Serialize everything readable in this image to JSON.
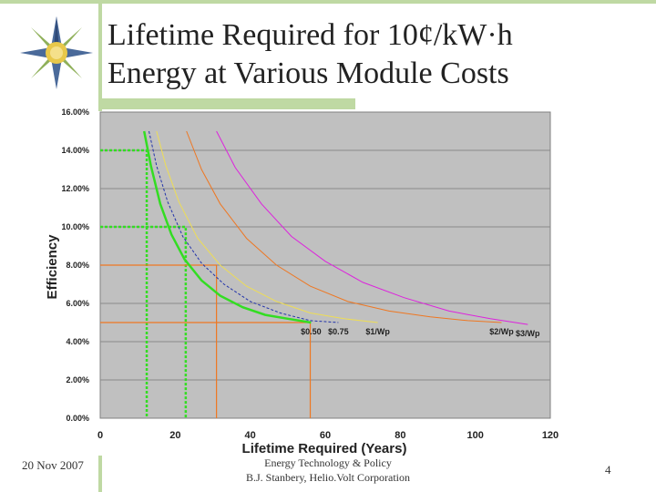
{
  "slide": {
    "title_line1": "Lifetime Required for 10¢/kW·h",
    "title_line2": "Energy at Various Module Costs",
    "footer_date": "20 Nov 2007",
    "footer_line1": "Energy Technology & Policy",
    "footer_line2": "B.J. Stanbery, Helio.Volt Corporation",
    "page_number": "4",
    "logo_icon": "compass-star-icon"
  },
  "chart_data": {
    "type": "line",
    "title": "",
    "xlabel": "Lifetime Required (Years)",
    "ylabel": "Efficiency",
    "xlim": [
      0,
      120
    ],
    "ylim": [
      0,
      16
    ],
    "x_ticks": [
      "0",
      "20",
      "40",
      "60",
      "80",
      "100",
      "120"
    ],
    "y_ticks": [
      "0.00%",
      "2.00%",
      "4.00%",
      "6.00%",
      "8.00%",
      "10.00%",
      "12.00%",
      "14.00%",
      "16.00%"
    ],
    "grid": "horizontal",
    "series": [
      {
        "name": "$0.50",
        "color": "#33dd22",
        "style": "solid",
        "x": [
          11.7,
          13.5,
          16,
          19,
          22.5,
          27,
          32,
          38,
          44,
          50,
          56.2
        ],
        "y": [
          15,
          13.2,
          11.2,
          9.6,
          8.3,
          7.2,
          6.4,
          5.8,
          5.4,
          5.2,
          5
        ]
      },
      {
        "name": "$0.75",
        "color": "#2233aa",
        "style": "dashed",
        "x": [
          13,
          15,
          18,
          22,
          27,
          33,
          40,
          48,
          56,
          63.5
        ],
        "y": [
          15,
          13.2,
          11.3,
          9.5,
          8.1,
          7,
          6.1,
          5.5,
          5.1,
          5
        ]
      },
      {
        "name": "$1/Wp",
        "color": "#eedd55",
        "style": "solid",
        "x": [
          15,
          17.5,
          21,
          26,
          32,
          39,
          47,
          56,
          65,
          74
        ],
        "y": [
          15,
          13.2,
          11.3,
          9.4,
          8,
          6.9,
          6.1,
          5.5,
          5.2,
          5
        ]
      },
      {
        "name": "$2/Wp",
        "color": "#ee7722",
        "style": "solid",
        "x": [
          23,
          27,
          32,
          39,
          47,
          56,
          66,
          77,
          88,
          98,
          107
        ],
        "y": [
          15,
          13,
          11.2,
          9.4,
          8,
          6.9,
          6.1,
          5.6,
          5.3,
          5.1,
          5
        ]
      },
      {
        "name": "$3/Wp",
        "color": "#dd22dd",
        "style": "solid",
        "x": [
          31,
          36,
          43,
          51,
          60,
          70,
          81,
          93,
          104,
          114
        ],
        "y": [
          15,
          13.1,
          11.2,
          9.5,
          8.2,
          7.1,
          6.3,
          5.6,
          5.2,
          4.9
        ]
      }
    ],
    "reference_lines": [
      {
        "color": "#33dd22",
        "style": "dashed",
        "x": 12.4,
        "y": 14
      },
      {
        "color": "#33dd22",
        "style": "dashed",
        "x": 22.8,
        "y": 10
      },
      {
        "color": "#ee7722",
        "style": "solid",
        "x": 31,
        "y": 8
      },
      {
        "color": "#ee7722",
        "style": "solid",
        "x": 56,
        "y": 5
      }
    ]
  }
}
